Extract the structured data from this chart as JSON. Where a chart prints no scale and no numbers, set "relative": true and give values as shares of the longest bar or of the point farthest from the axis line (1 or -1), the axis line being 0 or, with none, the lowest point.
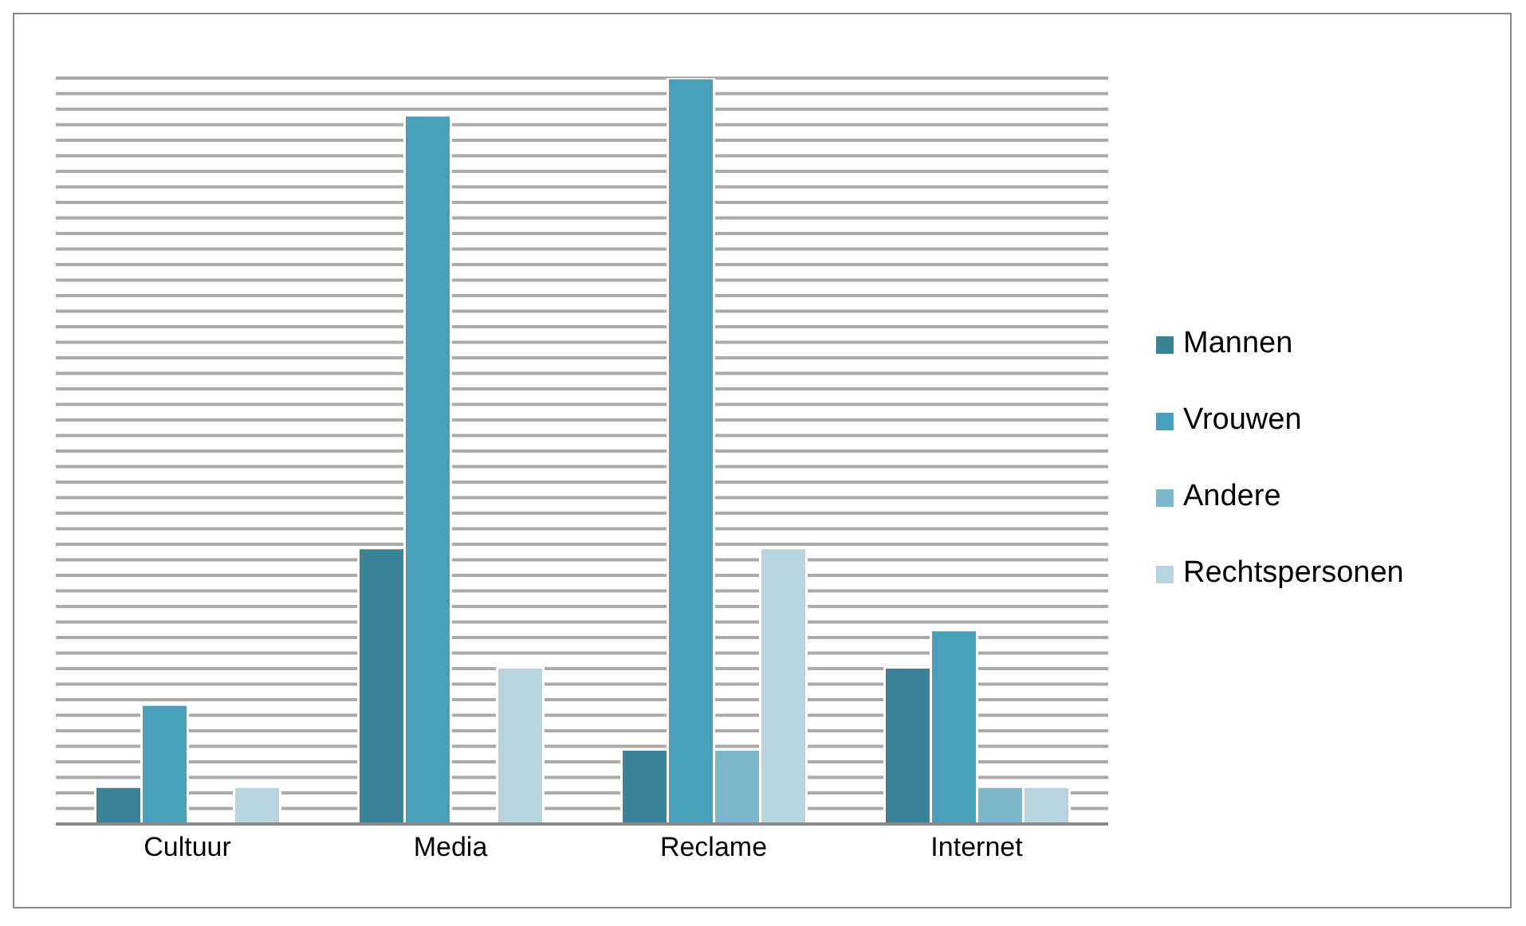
{
  "chart_data": {
    "type": "bar",
    "relative": true,
    "grid": "y",
    "legend": "right",
    "categories": [
      "Cultuur",
      "Media",
      "Reclame",
      "Internet"
    ],
    "series": [
      {
        "name": "Mannen",
        "color": "#3a8497",
        "values": [
          0.05,
          0.37,
          0.1,
          0.21
        ]
      },
      {
        "name": "Vrouwen",
        "color": "#46a0b8",
        "values": [
          0.16,
          0.95,
          1,
          0.26
        ]
      },
      {
        "name": "Andere",
        "color": "#7cb9cf",
        "values": [
          0,
          0,
          0.1,
          0.05
        ]
      },
      {
        "name": "Rechtspersonen",
        "color": "#b5d4df",
        "values": [
          0.05,
          0.21,
          0.37,
          0.05
        ]
      }
    ]
  }
}
